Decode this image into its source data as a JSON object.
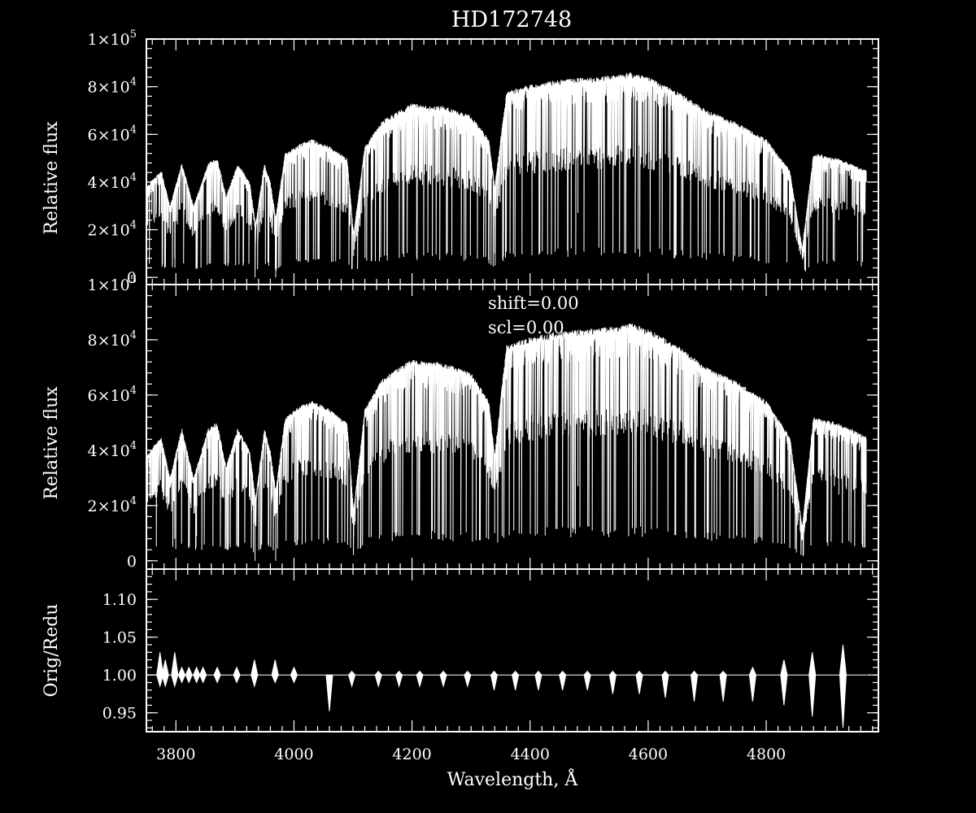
{
  "chart_data": {
    "type": "line",
    "title": "HD172748",
    "x": {
      "label": "Wavelength, Å",
      "range": [
        3750,
        4990
      ],
      "ticks": [
        3800,
        4000,
        4200,
        4400,
        4600,
        4800
      ],
      "tick_labels": [
        "3800",
        "4000",
        "4200",
        "4400",
        "4600",
        "4800"
      ]
    },
    "panels": [
      {
        "id": "original",
        "ylabel": "Relative flux",
        "ylim": [
          -3000,
          100000
        ],
        "yticks": [
          0,
          20000,
          40000,
          60000,
          80000,
          100000
        ],
        "ytick_labels": [
          {
            "base": "0"
          },
          {
            "base": "2×10",
            "sup": "4"
          },
          {
            "base": "4×10",
            "sup": "4"
          },
          {
            "base": "6×10",
            "sup": "4"
          },
          {
            "base": "8×10",
            "sup": "4"
          },
          {
            "base": "1×10",
            "sup": "5"
          }
        ],
        "annotations": []
      },
      {
        "id": "reduced",
        "ylabel": "Relative flux",
        "ylim": [
          -3000,
          100000
        ],
        "yticks": [
          0,
          20000,
          40000,
          60000,
          80000,
          100000
        ],
        "ytick_labels": [
          {
            "base": "0"
          },
          {
            "base": "2×10",
            "sup": "4"
          },
          {
            "base": "4×10",
            "sup": "4"
          },
          {
            "base": "6×10",
            "sup": "4"
          },
          {
            "base": "8×10",
            "sup": "4"
          },
          {
            "base": "1×10",
            "sup": "5"
          }
        ],
        "annotations": [
          "shift=0.00",
          "scl=0.00"
        ]
      },
      {
        "id": "ratio",
        "ylabel": "Orig/Redu",
        "ylim": [
          0.925,
          1.14
        ],
        "yticks": [
          0.95,
          1.0,
          1.05,
          1.1
        ],
        "ytick_labels": [
          {
            "base": "0.95"
          },
          {
            "base": "1.00"
          },
          {
            "base": "1.05"
          },
          {
            "base": "1.10"
          }
        ]
      }
    ],
    "series": [
      {
        "panel": "original",
        "envelope_x": [
          3750,
          3775,
          3790,
          3810,
          3830,
          3855,
          3870,
          3885,
          3905,
          3925,
          3935,
          3950,
          3960,
          3969,
          3985,
          4010,
          4030,
          4060,
          4090,
          4101,
          4120,
          4150,
          4200,
          4225,
          4250,
          4300,
          4330,
          4340,
          4360,
          4400,
          4450,
          4500,
          4550,
          4570,
          4600,
          4650,
          4700,
          4750,
          4800,
          4840,
          4861,
          4880,
          4920,
          4970
        ],
        "envelope_y": [
          38000,
          45000,
          30000,
          48000,
          30000,
          48000,
          50000,
          34000,
          48000,
          40000,
          22000,
          48000,
          40000,
          25000,
          52000,
          56000,
          58000,
          55000,
          50000,
          18000,
          55000,
          66000,
          73000,
          72000,
          72000,
          68000,
          58000,
          38000,
          78000,
          81000,
          83000,
          84000,
          85000,
          86000,
          84000,
          78000,
          70000,
          65000,
          58000,
          45000,
          12000,
          52000,
          50000,
          45000
        ],
        "deep_lines_x": [
          3798,
          3835,
          3889,
          3934,
          3969,
          4101,
          4340,
          4481,
          4861,
          4923
        ],
        "deep_lines_y": [
          8000,
          9000,
          6000,
          0,
          0,
          9000,
          10000,
          27000,
          8000,
          24000
        ]
      },
      {
        "panel": "reduced",
        "envelope_x": [
          3750,
          3775,
          3790,
          3810,
          3830,
          3855,
          3870,
          3885,
          3905,
          3925,
          3935,
          3950,
          3960,
          3969,
          3985,
          4010,
          4030,
          4060,
          4090,
          4101,
          4120,
          4150,
          4200,
          4225,
          4250,
          4300,
          4330,
          4340,
          4360,
          4400,
          4450,
          4500,
          4550,
          4570,
          4600,
          4650,
          4700,
          4750,
          4800,
          4840,
          4861,
          4880,
          4920,
          4970
        ],
        "envelope_y": [
          38000,
          45000,
          30000,
          48000,
          30000,
          48000,
          50000,
          34000,
          48000,
          40000,
          22000,
          48000,
          40000,
          25000,
          52000,
          56000,
          58000,
          55000,
          50000,
          18000,
          55000,
          66000,
          73000,
          72000,
          72000,
          68000,
          58000,
          38000,
          78000,
          81000,
          83000,
          84000,
          85000,
          86000,
          84000,
          78000,
          70000,
          65000,
          58000,
          45000,
          12000,
          52000,
          50000,
          45000
        ],
        "deep_lines_x": [
          3798,
          3835,
          3889,
          3934,
          3969,
          4101,
          4340,
          4481,
          4861,
          4923
        ],
        "deep_lines_y": [
          8000,
          9000,
          6000,
          0,
          0,
          9000,
          10000,
          27000,
          8000,
          24000
        ]
      },
      {
        "panel": "ratio",
        "baseline": 1.0,
        "feature_x": [
          3773,
          3782,
          3798,
          3810,
          3822,
          3835,
          3846,
          3870,
          3903,
          3933,
          3968,
          4000,
          4060,
          4098,
          4143,
          4178,
          4213,
          4253,
          4294,
          4339,
          4375,
          4414,
          4455,
          4497,
          4540,
          4585,
          4629,
          4678,
          4727,
          4777,
          4830,
          4878,
          4930
        ],
        "feature_up": [
          1.03,
          1.02,
          1.03,
          1.01,
          1.01,
          1.01,
          1.01,
          1.01,
          1.01,
          1.02,
          1.02,
          1.01,
          1.0,
          1.005,
          1.005,
          1.005,
          1.005,
          1.005,
          1.005,
          1.005,
          1.005,
          1.005,
          1.005,
          1.005,
          1.005,
          1.005,
          1.005,
          1.005,
          1.005,
          1.01,
          1.02,
          1.03,
          1.04
        ],
        "feature_down": [
          0.985,
          0.985,
          0.985,
          0.99,
          0.99,
          0.99,
          0.99,
          0.99,
          0.99,
          0.985,
          0.99,
          0.99,
          0.952,
          0.985,
          0.985,
          0.985,
          0.985,
          0.985,
          0.985,
          0.98,
          0.98,
          0.98,
          0.98,
          0.98,
          0.975,
          0.975,
          0.97,
          0.965,
          0.965,
          0.965,
          0.96,
          0.945,
          0.93
        ]
      }
    ],
    "grid": false,
    "legend": "none"
  }
}
